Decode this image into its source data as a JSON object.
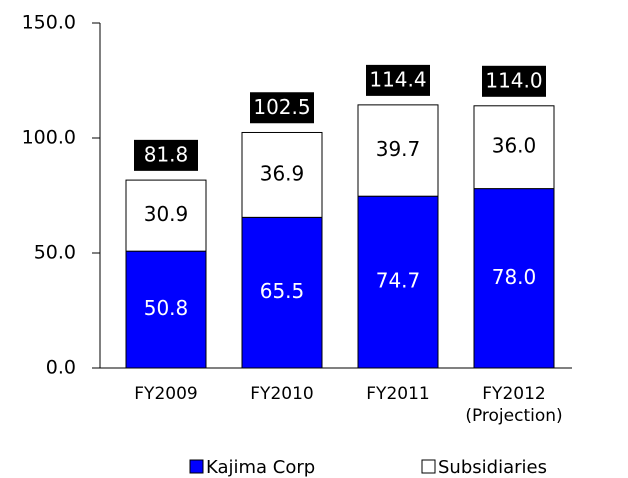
{
  "chart_data": {
    "type": "stacked_bar",
    "categories": [
      "FY2009",
      "FY2010",
      "FY2011",
      "FY2012\n(Projection)"
    ],
    "series": [
      {
        "name": "Kajima Corp",
        "color": "#0000ff",
        "values": [
          50.8,
          65.5,
          74.7,
          78
        ],
        "value_labels": [
          "50.8",
          "65.5",
          "74.7",
          "78.0"
        ]
      },
      {
        "name": "Subsidiaries",
        "color": "#ffffff",
        "values": [
          30.9,
          36.9,
          39.7,
          36
        ],
        "value_labels": [
          "30.9",
          "36.9",
          "39.7",
          "36.0"
        ]
      }
    ],
    "totals": [
      81.8,
      102.5,
      114.4,
      114
    ],
    "total_labels": [
      "81.8",
      "102.5",
      "114.4",
      "114.0"
    ],
    "ylim": [
      0,
      150
    ],
    "yticks": [
      {
        "value": 0,
        "label": "0.0"
      },
      {
        "value": 50,
        "label": "50.0"
      },
      {
        "value": 100,
        "label": "100.0"
      },
      {
        "value": 150,
        "label": "150.0"
      }
    ],
    "legend": "bottom"
  }
}
